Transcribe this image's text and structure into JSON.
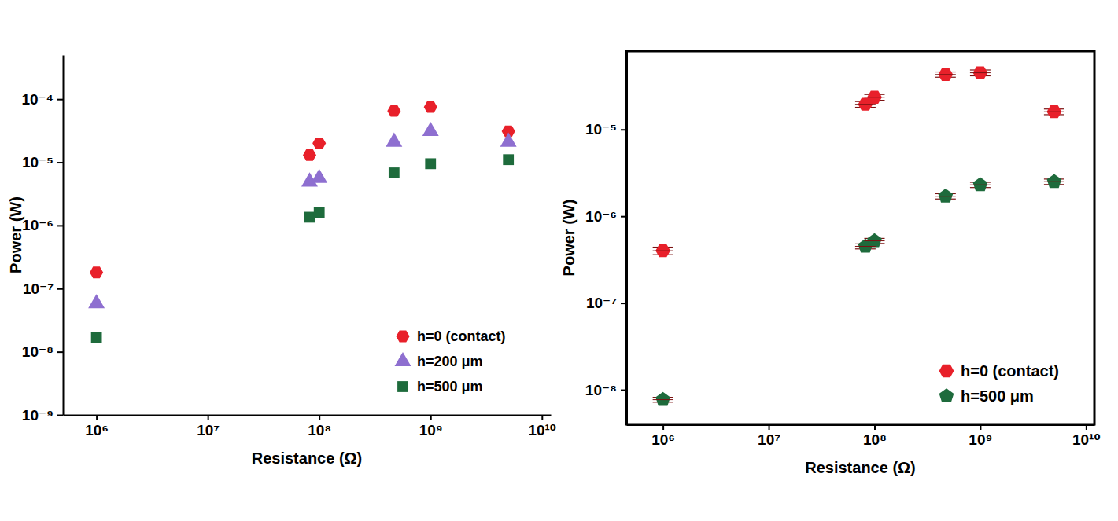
{
  "chart_data": [
    {
      "type": "scatter",
      "xlabel": "Resistance (Ω)",
      "ylabel": "Power (W)",
      "log": true,
      "legend": "lower right",
      "xlim": [
        500000.0,
        12000000000.0
      ],
      "xticks": [
        {
          "value": 1000000.0,
          "label": "10⁶"
        },
        {
          "value": 10000000.0,
          "label": "10⁷"
        },
        {
          "value": 100000000.0,
          "label": "10⁸"
        },
        {
          "value": 1000000000.0,
          "label": "10⁹"
        },
        {
          "value": 10000000000.0,
          "label": "10¹⁰"
        }
      ],
      "ylim": [
        1e-09,
        0.0005
      ],
      "yticks": [
        {
          "value": 1e-09,
          "label": "10⁻⁹"
        },
        {
          "value": 1e-08,
          "label": "10⁻⁸"
        },
        {
          "value": 1e-07,
          "label": "10⁻⁷"
        },
        {
          "value": 1e-06,
          "label": "10⁻⁶"
        },
        {
          "value": 1e-05,
          "label": "10⁻⁵"
        },
        {
          "value": 0.0001,
          "label": "10⁻⁴"
        }
      ],
      "x": [
        1000000.0,
        82000000.0,
        100000000.0,
        470000000.0,
        1000000000.0,
        5000000000.0
      ],
      "series": [
        {
          "name": "h=0 (contact)",
          "color": "#e8202a",
          "marker": "hexagon",
          "values": [
            1.8e-07,
            1.3e-05,
            2e-05,
            6.5e-05,
            7.5e-05,
            3.1e-05
          ]
        },
        {
          "name": "h=200 μm",
          "color": "#8e6fd0",
          "marker": "triangle",
          "values": [
            5.8e-08,
            4.9e-06,
            5.6e-06,
            2.1e-05,
            3.1e-05,
            2.1e-05
          ]
        },
        {
          "name": "h=500 μm",
          "color": "#1e6b3c",
          "marker": "square",
          "values": [
            1.7e-08,
            1.35e-06,
            1.6e-06,
            6.8e-06,
            9.5e-06,
            1.1e-05
          ]
        }
      ]
    },
    {
      "type": "scatter",
      "xlabel": "Resistance (Ω)",
      "ylabel": "Power (W)",
      "log": true,
      "legend": "lower right",
      "xlim": [
        450000.0,
        12000000000.0
      ],
      "xticks": [
        {
          "value": 1000000.0,
          "label": "10⁶"
        },
        {
          "value": 10000000.0,
          "label": "10⁷"
        },
        {
          "value": 100000000.0,
          "label": "10⁸"
        },
        {
          "value": 1000000000.0,
          "label": "10⁹"
        },
        {
          "value": 10000000000.0,
          "label": "10¹⁰"
        }
      ],
      "ylim": [
        4e-09,
        8e-05
      ],
      "yticks": [
        {
          "value": 1e-08,
          "label": "10⁻⁸"
        },
        {
          "value": 1e-07,
          "label": "10⁻⁷"
        },
        {
          "value": 1e-06,
          "label": "10⁻⁶"
        },
        {
          "value": 1e-05,
          "label": "10⁻⁵"
        }
      ],
      "x": [
        1000000.0,
        82000000.0,
        100000000.0,
        470000000.0,
        1000000000.0,
        5000000000.0
      ],
      "series": [
        {
          "name": "h=0 (contact)",
          "color": "#e8202a",
          "marker": "hexagon",
          "values": [
            4e-07,
            1.95e-05,
            2.35e-05,
            4.3e-05,
            4.5e-05,
            1.6e-05
          ],
          "errors": [
            4e-08,
            1.5e-06,
            1.8e-06,
            3e-06,
            3.5e-06,
            1.2e-06
          ]
        },
        {
          "name": "h=500 μm",
          "color": "#1e6b3c",
          "marker": "pentagon",
          "values": [
            7.7e-09,
            4.5e-07,
            5.2e-07,
            1.7e-06,
            2.3e-06,
            2.5e-06
          ],
          "errors": [
            5e-10,
            3e-08,
            3.5e-08,
            1.2e-07,
            1.6e-07,
            1.8e-07
          ]
        }
      ]
    }
  ]
}
